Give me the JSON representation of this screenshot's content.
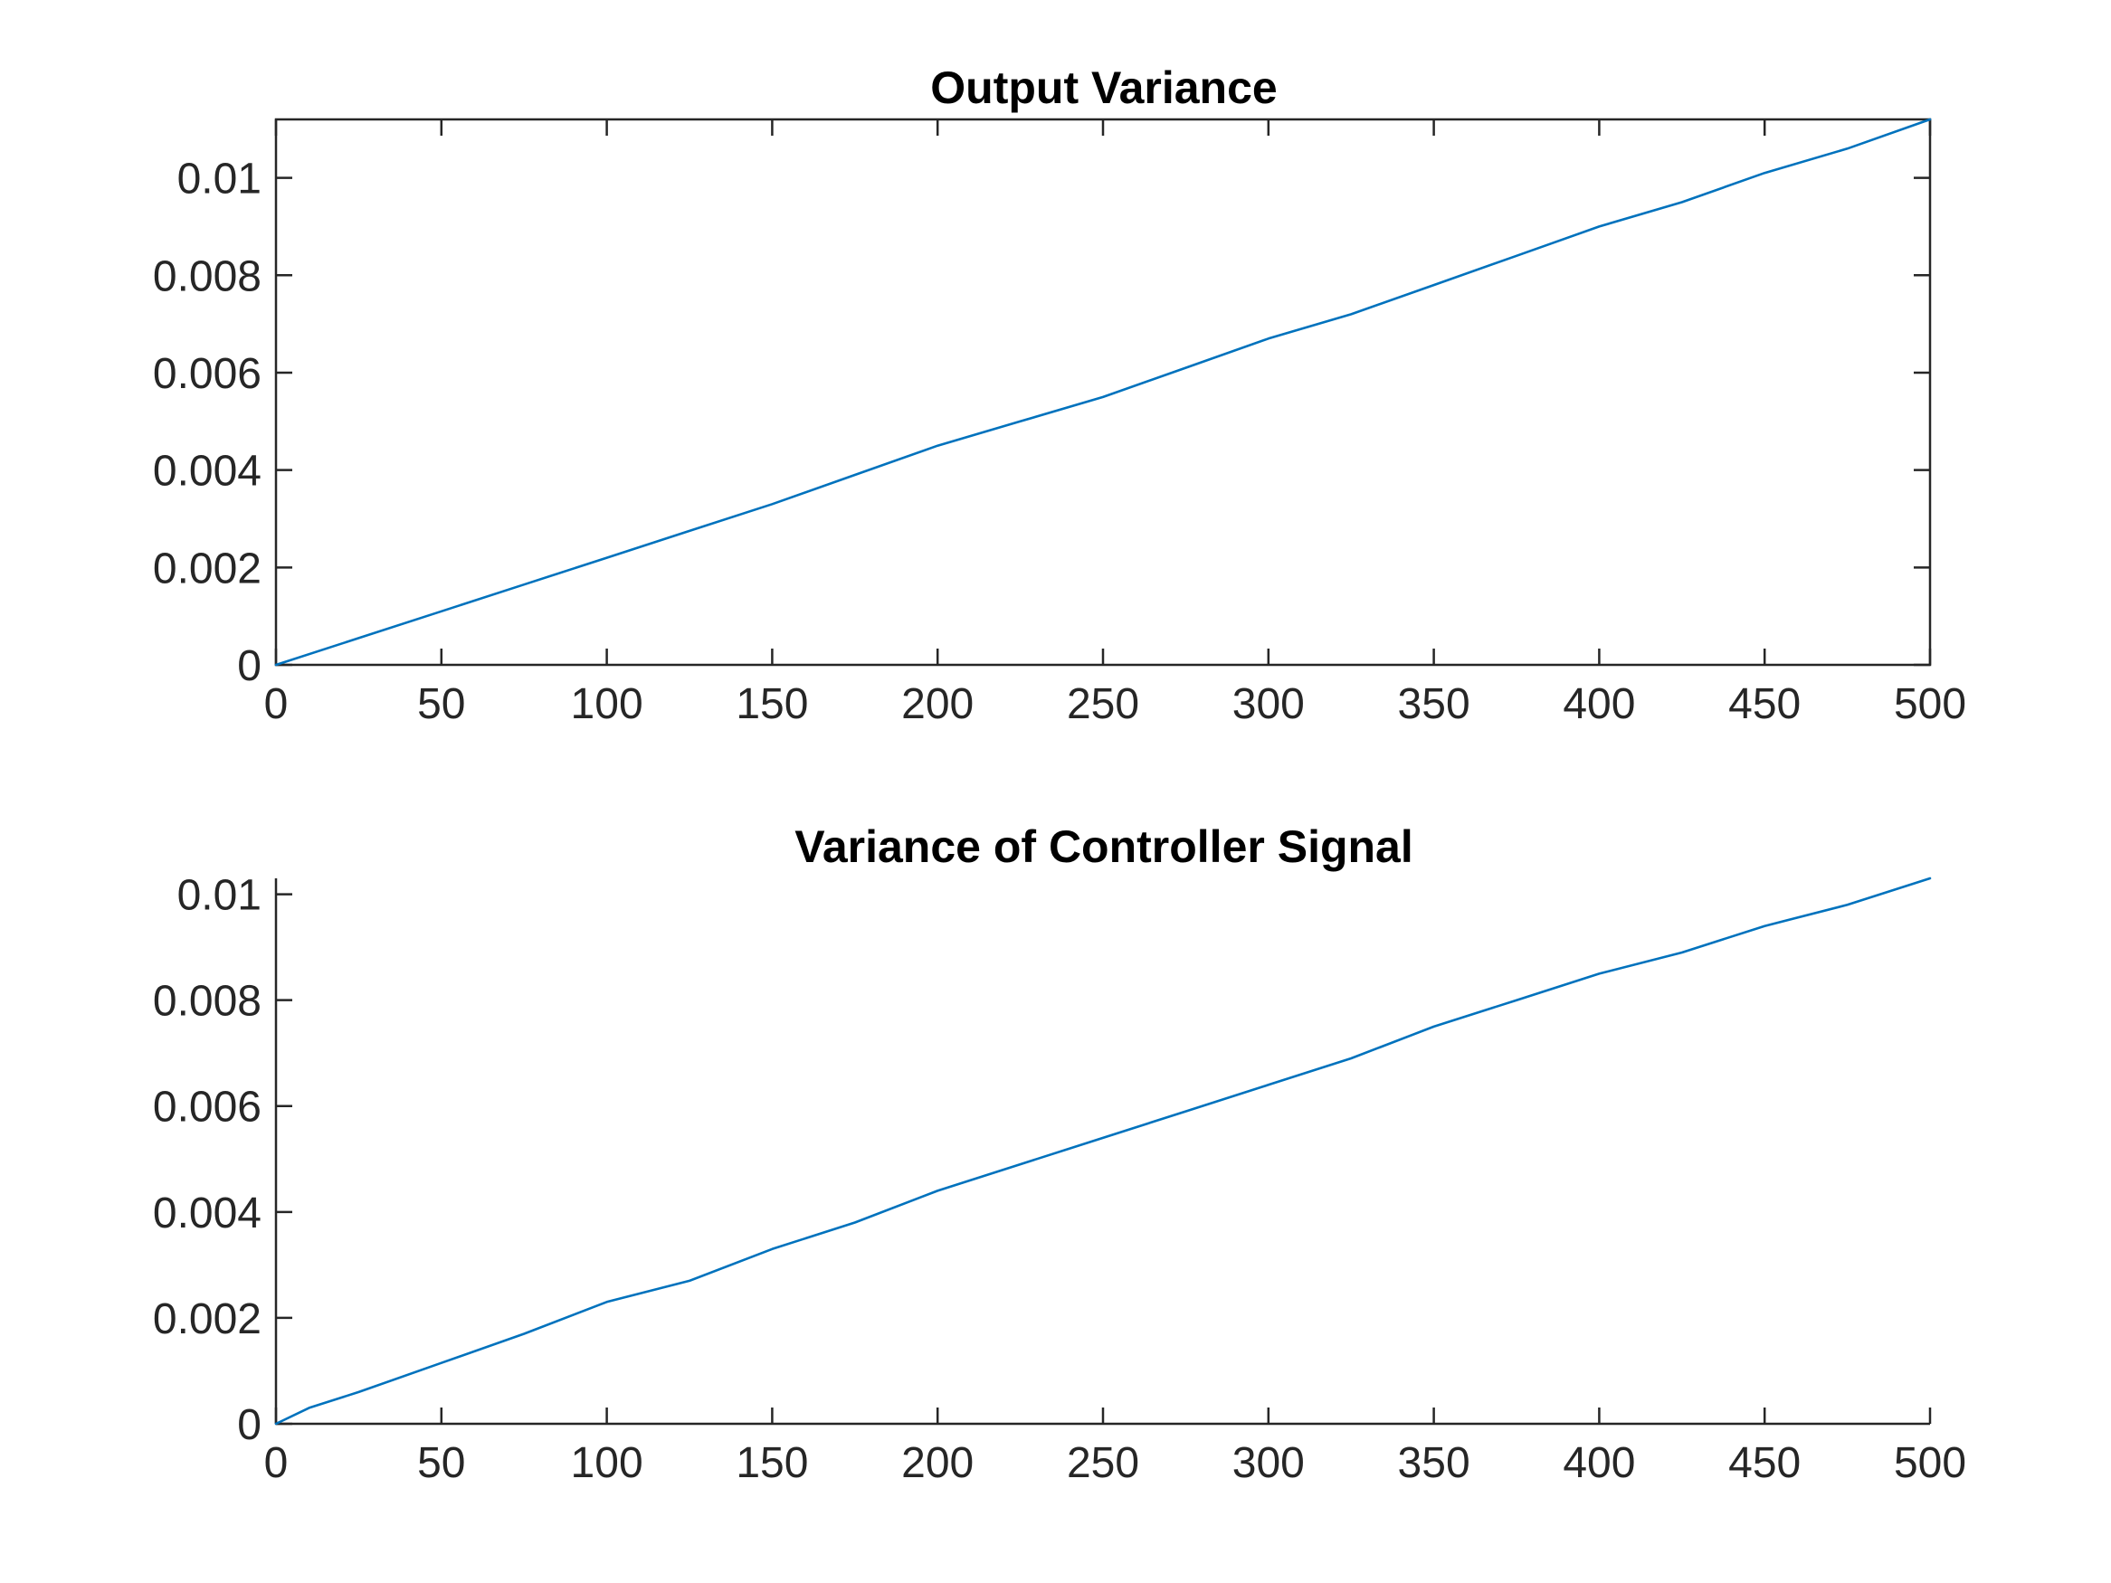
{
  "chart_data": [
    {
      "type": "line",
      "title": "Output Variance",
      "xlabel": "",
      "ylabel": "",
      "xlim": [
        0,
        500
      ],
      "ylim": [
        0,
        0.0112
      ],
      "x_ticks": [
        0,
        50,
        100,
        150,
        200,
        250,
        300,
        350,
        400,
        450,
        500
      ],
      "x_tick_labels": [
        "0",
        "50",
        "100",
        "150",
        "200",
        "250",
        "300",
        "350",
        "400",
        "450",
        "500"
      ],
      "y_ticks": [
        0,
        0.002,
        0.004,
        0.006,
        0.008,
        0.01
      ],
      "y_tick_labels": [
        "0",
        "0.002",
        "0.004",
        "0.006",
        "0.008",
        "0.01"
      ],
      "grid": false,
      "series": [
        {
          "color": "#0072BD",
          "x": [
            0,
            25,
            50,
            75,
            100,
            125,
            150,
            175,
            200,
            225,
            250,
            275,
            300,
            325,
            350,
            375,
            400,
            425,
            450,
            475,
            500
          ],
          "y": [
            0,
            0.00055,
            0.0011,
            0.00165,
            0.0022,
            0.00275,
            0.0033,
            0.0039,
            0.0045,
            0.005,
            0.0055,
            0.0061,
            0.0067,
            0.0072,
            0.0078,
            0.0084,
            0.009,
            0.0095,
            0.0101,
            0.0106,
            0.0112
          ]
        }
      ]
    },
    {
      "type": "line",
      "title": "Variance of Controller Signal",
      "xlabel": "",
      "ylabel": "",
      "xlim": [
        0,
        500
      ],
      "ylim": [
        0,
        0.0103
      ],
      "x_ticks": [
        0,
        50,
        100,
        150,
        200,
        250,
        300,
        350,
        400,
        450,
        500
      ],
      "x_tick_labels": [
        "0",
        "50",
        "100",
        "150",
        "200",
        "250",
        "300",
        "350",
        "400",
        "450",
        "500"
      ],
      "y_ticks": [
        0,
        0.002,
        0.004,
        0.006,
        0.008,
        0.01
      ],
      "y_tick_labels": [
        "0",
        "0.002",
        "0.004",
        "0.006",
        "0.008",
        "0.01"
      ],
      "grid": false,
      "series": [
        {
          "color": "#0072BD",
          "x": [
            0,
            10,
            25,
            50,
            75,
            100,
            125,
            150,
            175,
            200,
            225,
            250,
            275,
            300,
            325,
            350,
            375,
            400,
            425,
            450,
            475,
            500
          ],
          "y": [
            0,
            0.0003,
            0.0006,
            0.00115,
            0.0017,
            0.0023,
            0.0027,
            0.0033,
            0.0038,
            0.0044,
            0.0049,
            0.0054,
            0.0059,
            0.0064,
            0.0069,
            0.0075,
            0.008,
            0.0085,
            0.0089,
            0.0094,
            0.0098,
            0.0103
          ]
        }
      ]
    }
  ]
}
